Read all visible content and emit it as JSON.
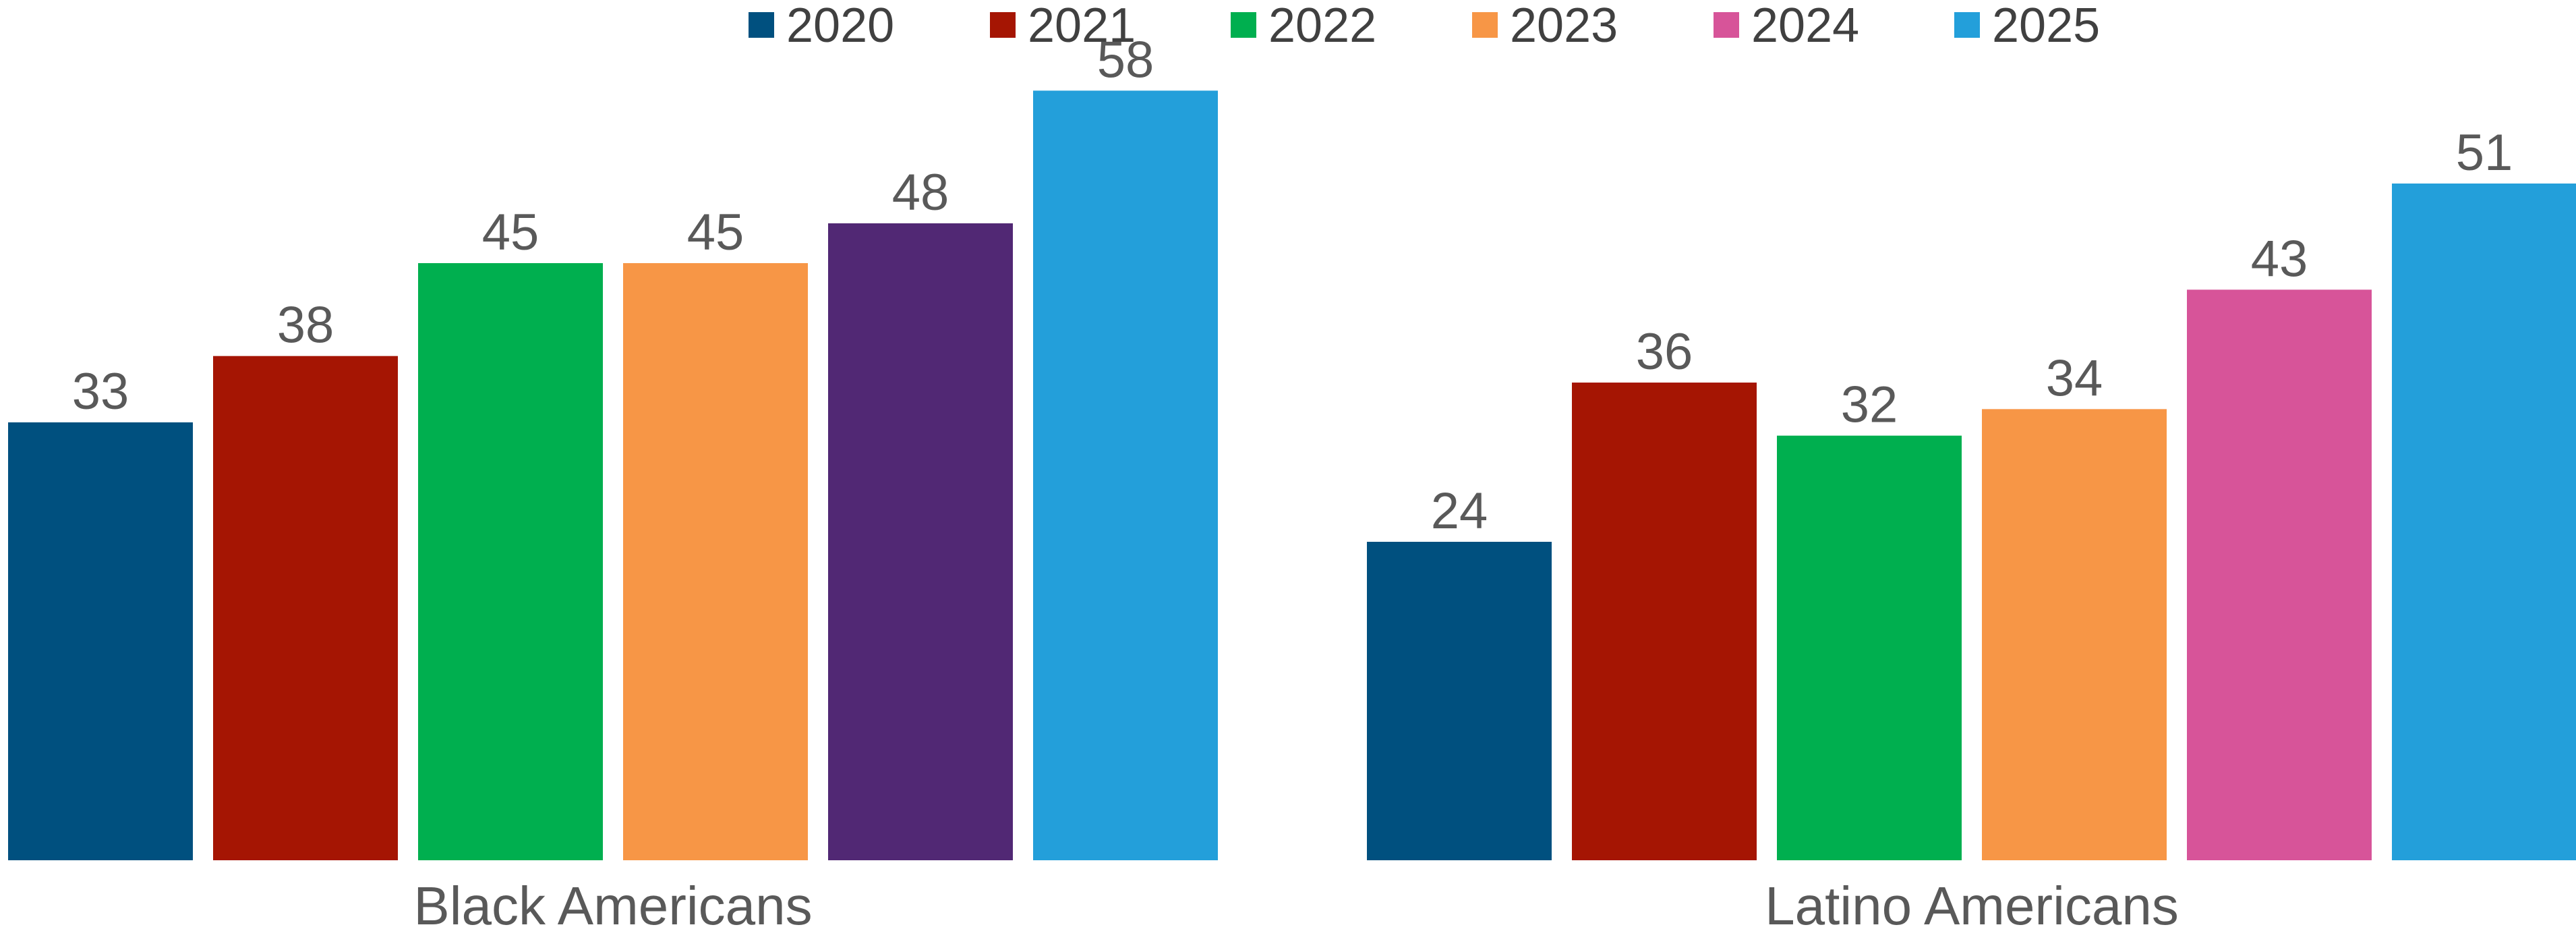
{
  "chart_data": {
    "type": "bar",
    "categories": [
      "Black Americans",
      "Latino Americans"
    ],
    "series": [
      {
        "name": "2020",
        "color": "#00507F",
        "values": [
          33,
          24
        ]
      },
      {
        "name": "2021",
        "color": "#A51503",
        "values": [
          38,
          36
        ]
      },
      {
        "name": "2022",
        "color": "#00AF4F",
        "values": [
          45,
          32
        ]
      },
      {
        "name": "2023",
        "color": "#F79646",
        "values": [
          45,
          34
        ]
      },
      {
        "name": "2024",
        "color": "#D75499",
        "values": [
          null,
          43
        ]
      },
      {
        "name": "2025",
        "color": "#239FDA",
        "values": [
          58,
          51
        ]
      }
    ],
    "bar_color_overrides": [
      {
        "series": "2024",
        "category": "Black Americans",
        "value": 48,
        "color": "#512874"
      }
    ],
    "ylim": [
      0,
      60
    ],
    "grid": false,
    "legend_position": "top-center"
  }
}
